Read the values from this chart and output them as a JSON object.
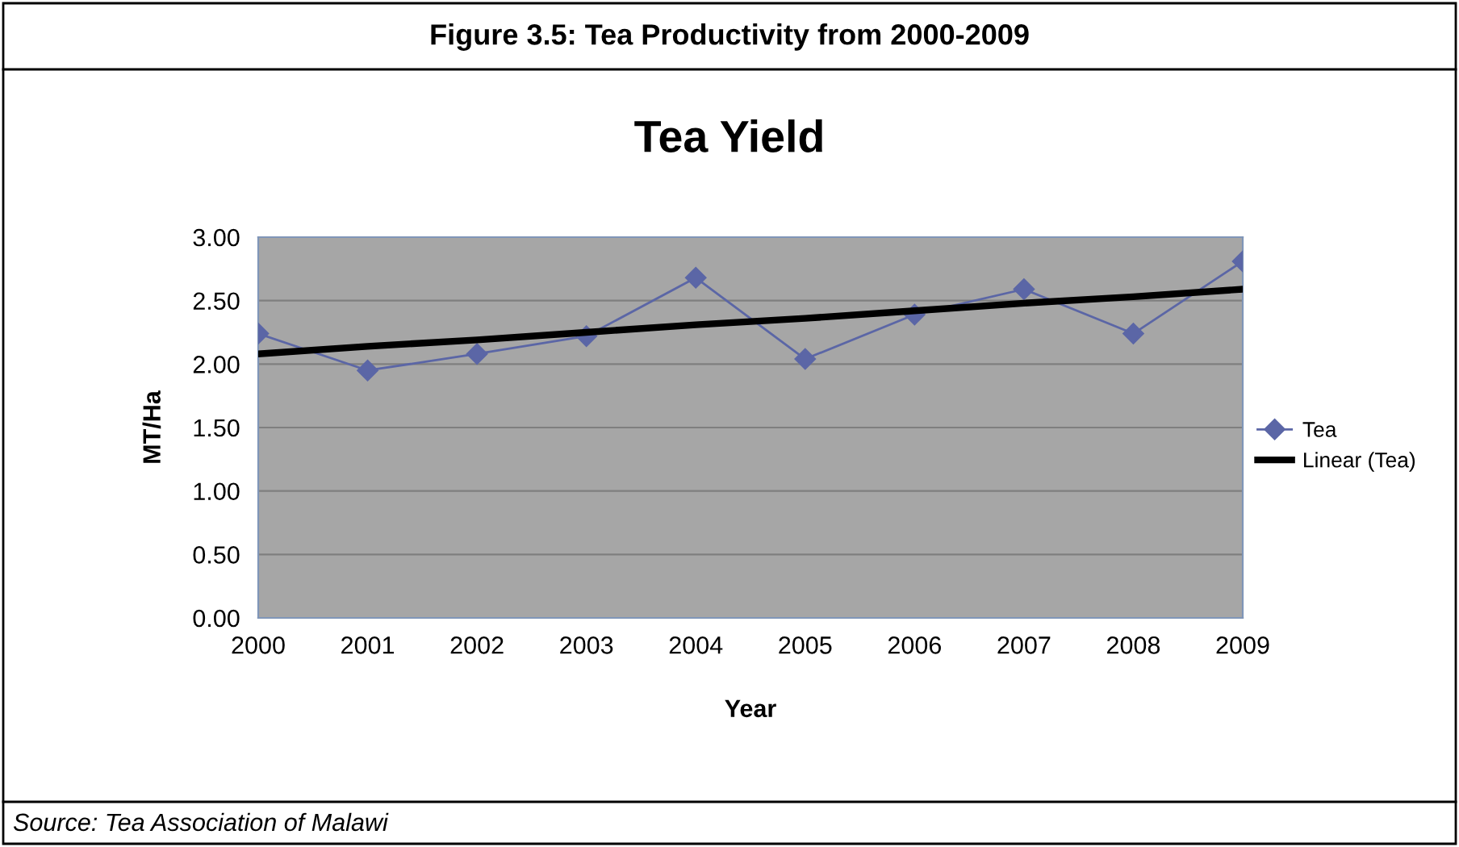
{
  "chart_data": {
    "type": "line",
    "title": "Figure 3.5: Tea Productivity from 2000-2009",
    "subtitle": "Tea Yield",
    "xlabel": "Year",
    "ylabel": "MT/Ha",
    "annotations": [
      "Source: Tea Association of Malawi"
    ],
    "categories": [
      "2000",
      "2001",
      "2002",
      "2003",
      "2004",
      "2005",
      "2006",
      "2007",
      "2008",
      "2009"
    ],
    "series": [
      {
        "name": "Tea",
        "color": "#5b66a6",
        "marker": "diamond",
        "values": [
          2.24,
          1.95,
          2.08,
          2.22,
          2.68,
          2.04,
          2.39,
          2.59,
          2.24,
          2.81
        ]
      },
      {
        "name": "Linear (Tea)",
        "color": "#000000",
        "marker": "none",
        "values": [
          2.08,
          2.14,
          2.19,
          2.25,
          2.31,
          2.36,
          2.42,
          2.48,
          2.53,
          2.59
        ]
      }
    ],
    "ylim": [
      0,
      3
    ],
    "yticks": [
      {
        "value": 0,
        "label": "0.00"
      },
      {
        "value": 0.5,
        "label": "0.50"
      },
      {
        "value": 1,
        "label": "1.00"
      },
      {
        "value": 1.5,
        "label": "1.50"
      },
      {
        "value": 2,
        "label": "2.00"
      },
      {
        "value": 2.5,
        "label": "2.50"
      },
      {
        "value": 3,
        "label": "3.00"
      }
    ],
    "grid": "y",
    "legend": "right"
  }
}
